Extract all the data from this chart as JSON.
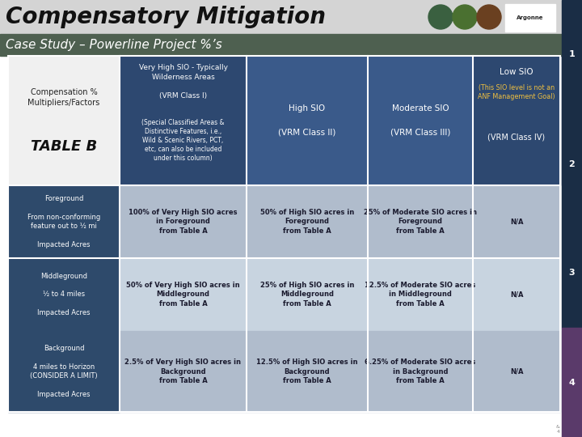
{
  "title_line1": "Compensatory Mitigation",
  "title_line2": "Case Study – Powerline Project %’s",
  "col0_bg_header": "#ffffff",
  "col1_header_bg": "#3d5a80",
  "col2_header_bg": "#3d5a80",
  "col3_header_bg": "#3d5a80",
  "col4_header_bg": "#3d5a80",
  "row_label_bg": "#2e4a6b",
  "row_data_odd_bg": "#b8c4d0",
  "row_data_even_bg": "#cfd8e3",
  "title_bar_bg": "#d8d8d8",
  "subtitle_bar_bg": "#5a6e5a",
  "right_strip_top_bg": "#1a3050",
  "right_strip_bot_bg": "#5a4070",
  "col4_note_color": "#f0c040",
  "white": "#ffffff",
  "header_text_color": "#ffffff",
  "data_text_color": "#1a1a2e",
  "label_text_color": "#ffffff",
  "slide_nums": [
    "1",
    "2",
    "3",
    "4"
  ],
  "row_labels": [
    "Foreground\n\nFrom non-conforming\nfeature out to ½ mi\n\nImpacted Acres",
    "Middleground\n\n½ to 4 miles\n\nImpacted Acres",
    "Background\n\n4 miles to Horizon\n(CONSIDER A LIMIT)\n\nImpacted Acres"
  ],
  "cell_data": [
    [
      "100% of Very High SIO acres\nin Foreground\nfrom Table A",
      "50% of High SIO acres in\nForeground\nfrom Table A",
      "25% of Moderate SIO acres in\nForeground\nfrom Table A",
      "N/A"
    ],
    [
      "50% of Very High SIO acres in\nMiddleground\nfrom Table A",
      "25% of High SIO acres in\nMiddleground\nfrom Table A",
      "12.5% of Moderate SIO acres\nin Middleground\nfrom Table A",
      "N/A"
    ],
    [
      "2.5% of Very High SIO acres in\nBackground\nfrom Table A",
      "12.5% of High SIO acres in\nBackground\nfrom Table A",
      "6.25% of Moderate SIO acres\nin Background\nfrom Table A",
      "N/A"
    ]
  ]
}
